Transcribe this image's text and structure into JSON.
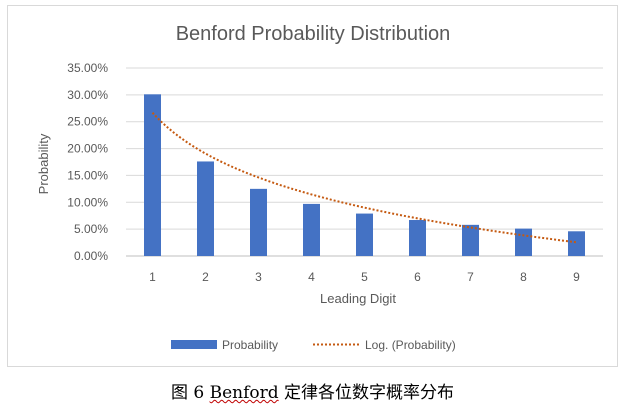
{
  "chart_data": {
    "type": "bar",
    "title": "Benford Probability Distribution",
    "xlabel": "Leading Digit",
    "ylabel": "Probability",
    "categories": [
      "1",
      "2",
      "3",
      "4",
      "5",
      "6",
      "7",
      "8",
      "9"
    ],
    "series": [
      {
        "name": "Probability",
        "type": "bar",
        "values": [
          0.301,
          0.176,
          0.125,
          0.097,
          0.079,
          0.067,
          0.058,
          0.051,
          0.046
        ],
        "color": "#4472c4"
      },
      {
        "name": "Log. (Probability)",
        "type": "trendline-log",
        "style": "dotted",
        "color": "#c55a11",
        "fit": {
          "a": 0.2668,
          "b": -0.1098
        }
      }
    ],
    "ylim": [
      0,
      0.35
    ],
    "yticks": [
      "0.00%",
      "5.00%",
      "10.00%",
      "15.00%",
      "20.00%",
      "25.00%",
      "30.00%",
      "35.00%"
    ],
    "grid": true,
    "legend": "bottom"
  },
  "caption": {
    "prefix": "图 6 ",
    "underlined": "Benford",
    "suffix": " 定律各位数字概率分布"
  }
}
